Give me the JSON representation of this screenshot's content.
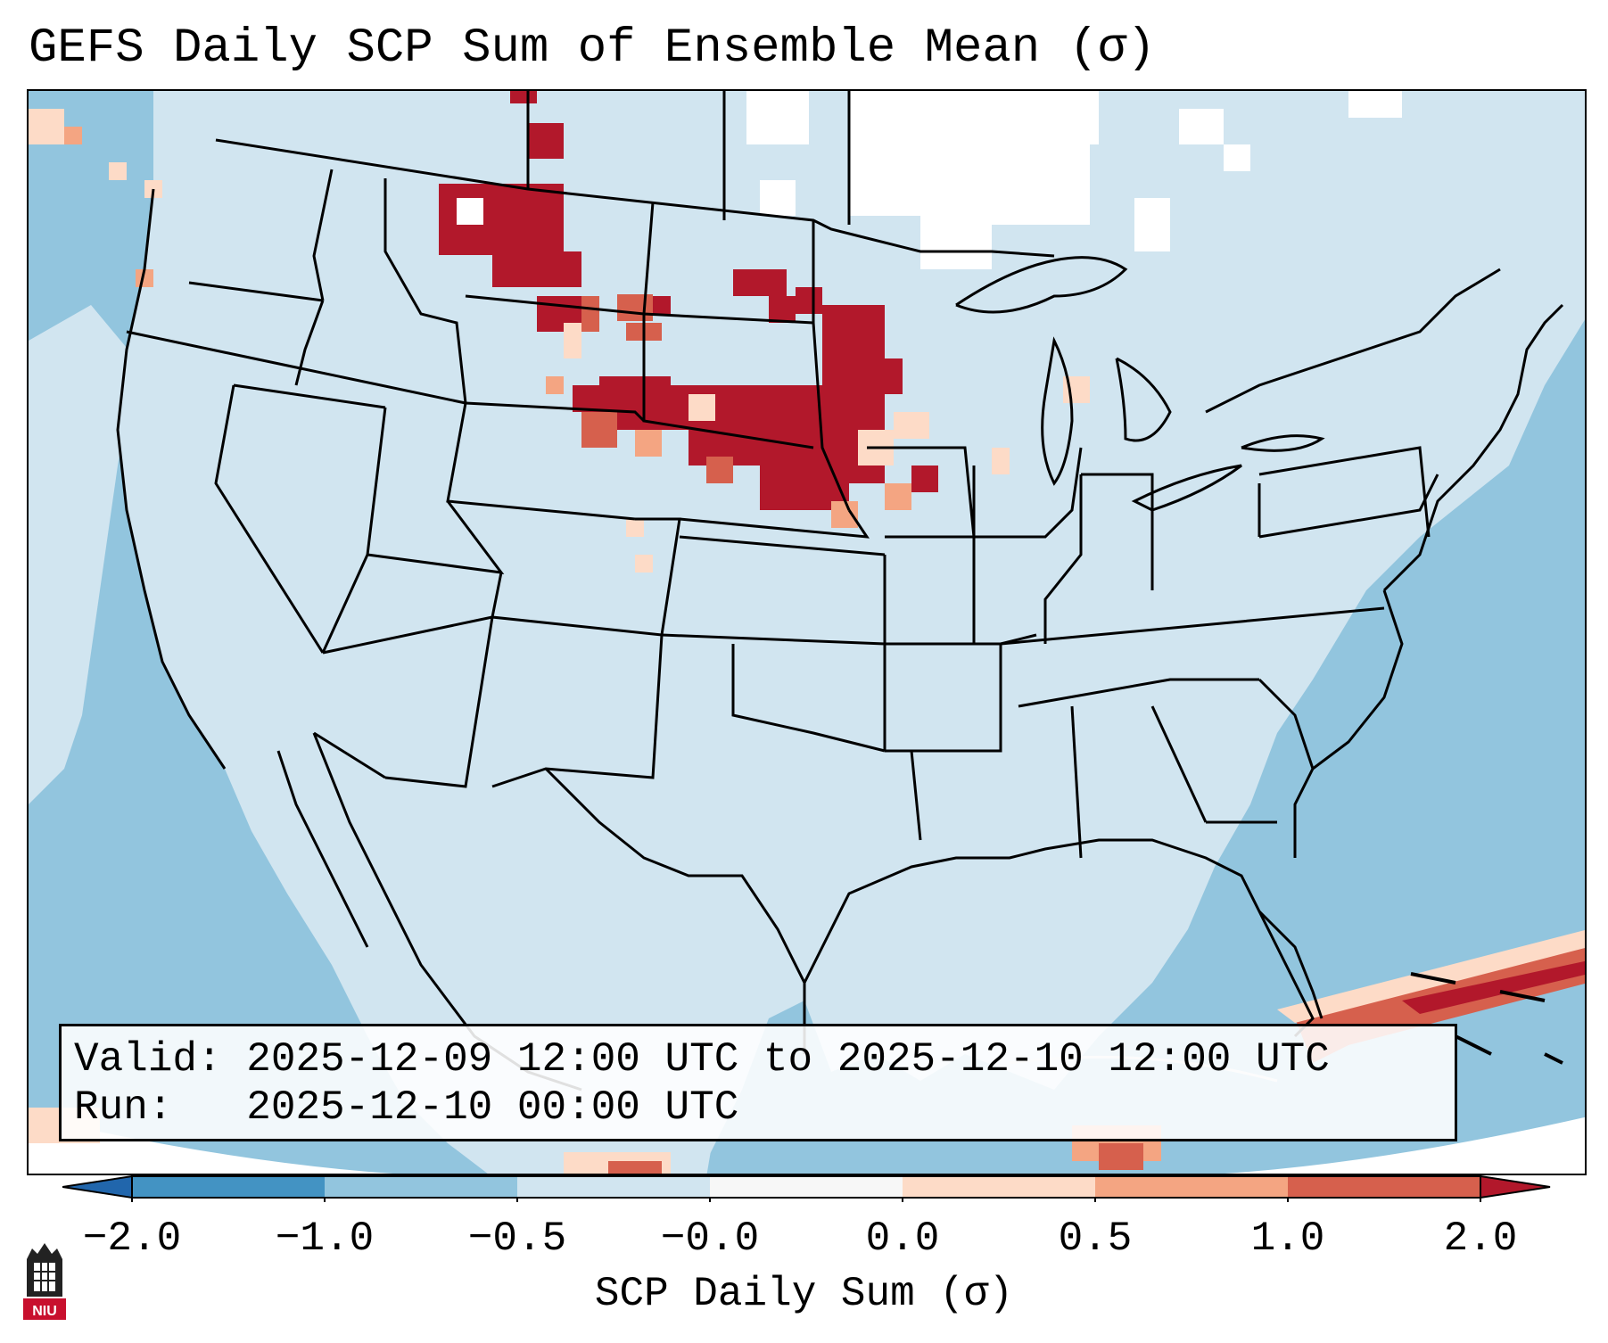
{
  "title": "GEFS Daily SCP Sum of Ensemble Mean (σ)",
  "info": {
    "valid_line": "Valid: 2025-12-09 12:00 UTC to 2025-12-10 12:00 UTC",
    "run_line": "Run:   2025-12-10 00:00 UTC"
  },
  "colorbar": {
    "label": "SCP Daily Sum (σ)",
    "ticks": [
      "−2.0",
      "−1.0",
      "−0.5",
      "−0.0",
      "0.0",
      "0.5",
      "1.0",
      "2.0"
    ],
    "colors": [
      "#4393c3",
      "#92c5de",
      "#d1e5f0",
      "#f7f7f7",
      "#fddbc7",
      "#f4a582",
      "#d6604d",
      "#b2182b"
    ],
    "extend_low_color": "#2166ac",
    "extend_high_color": "#b2182b"
  },
  "map": {
    "ocean_color": "#92c5de",
    "land_color": "#d1e5f0",
    "no_data_color": "#ffffff",
    "regions_above_2sigma": [
      "northern Montana",
      "North Dakota",
      "South Dakota",
      "eastern Nebraska",
      "Minnesota",
      "Bahamas"
    ]
  },
  "logo": {
    "name": "niu-logo",
    "text": "NIU"
  }
}
